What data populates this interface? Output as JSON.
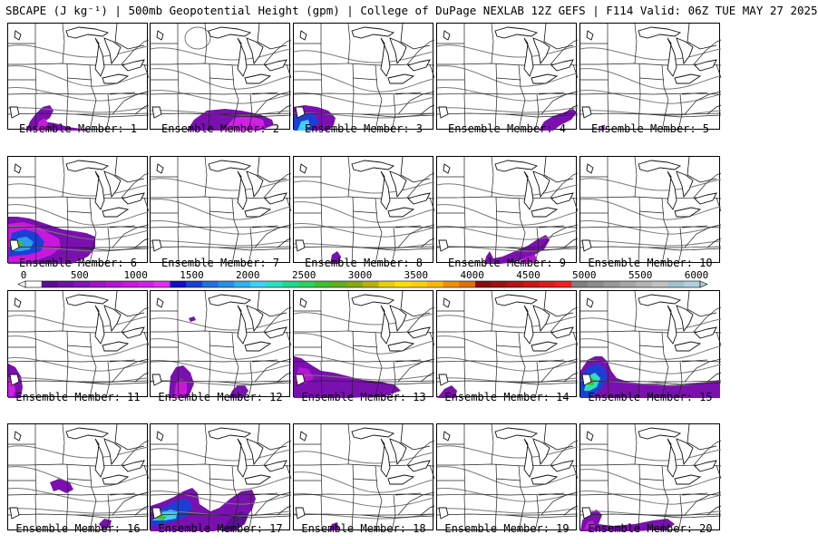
{
  "header": {
    "title": "SBCAPE (J kg⁻¹) | 500mb Geopotential Height (gpm) | College of DuPage NEXLAB 12Z GEFS | F114 Valid: 06Z TUE MAY 27 2025"
  },
  "colorbar": {
    "ticks": [
      "0",
      "500",
      "1000",
      "1500",
      "2000",
      "2500",
      "3000",
      "3500",
      "4000",
      "4500",
      "5000",
      "5500",
      "6000"
    ],
    "colors": [
      "#ffffff",
      "#5a0f96",
      "#6e11a8",
      "#8214b9",
      "#9e15c8",
      "#b416d4",
      "#c818dd",
      "#d21fe6",
      "#e12ef0",
      "#1010c8",
      "#1b3fd6",
      "#2070e0",
      "#2490e8",
      "#2fb2f0",
      "#40d0f8",
      "#2ae0c0",
      "#20d890",
      "#2cd060",
      "#40c030",
      "#60b020",
      "#88a810",
      "#b8b010",
      "#e8d000",
      "#ffe000",
      "#ffd000",
      "#ffb800",
      "#f09000",
      "#e07000",
      "#8c0c0c",
      "#a01010",
      "#b41414",
      "#c81818",
      "#dc1c1c",
      "#f02020",
      "#808080",
      "#8c8c8c",
      "#999999",
      "#a6a6a6",
      "#b3b3b3",
      "#c0c0c0",
      "#a0c0d0",
      "#b0d0e0"
    ]
  },
  "members": [
    {
      "label": "Ensemble Member: 1"
    },
    {
      "label": "Ensemble Member: 2"
    },
    {
      "label": "Ensemble Member: 3"
    },
    {
      "label": "Ensemble Member: 4"
    },
    {
      "label": "Ensemble Member: 5"
    },
    {
      "label": "Ensemble Member: 6"
    },
    {
      "label": "Ensemble Member: 7"
    },
    {
      "label": "Ensemble Member: 8"
    },
    {
      "label": "Ensemble Member: 9"
    },
    {
      "label": "Ensemble Member: 10"
    },
    {
      "label": "Ensemble Member: 11"
    },
    {
      "label": "Ensemble Member: 12"
    },
    {
      "label": "Ensemble Member: 13"
    },
    {
      "label": "Ensemble Member: 14"
    },
    {
      "label": "Ensemble Member: 15"
    },
    {
      "label": "Ensemble Member: 16"
    },
    {
      "label": "Ensemble Member: 17"
    },
    {
      "label": "Ensemble Member: 18"
    },
    {
      "label": "Ensemble Member: 19"
    },
    {
      "label": "Ensemble Member: 20"
    }
  ]
}
